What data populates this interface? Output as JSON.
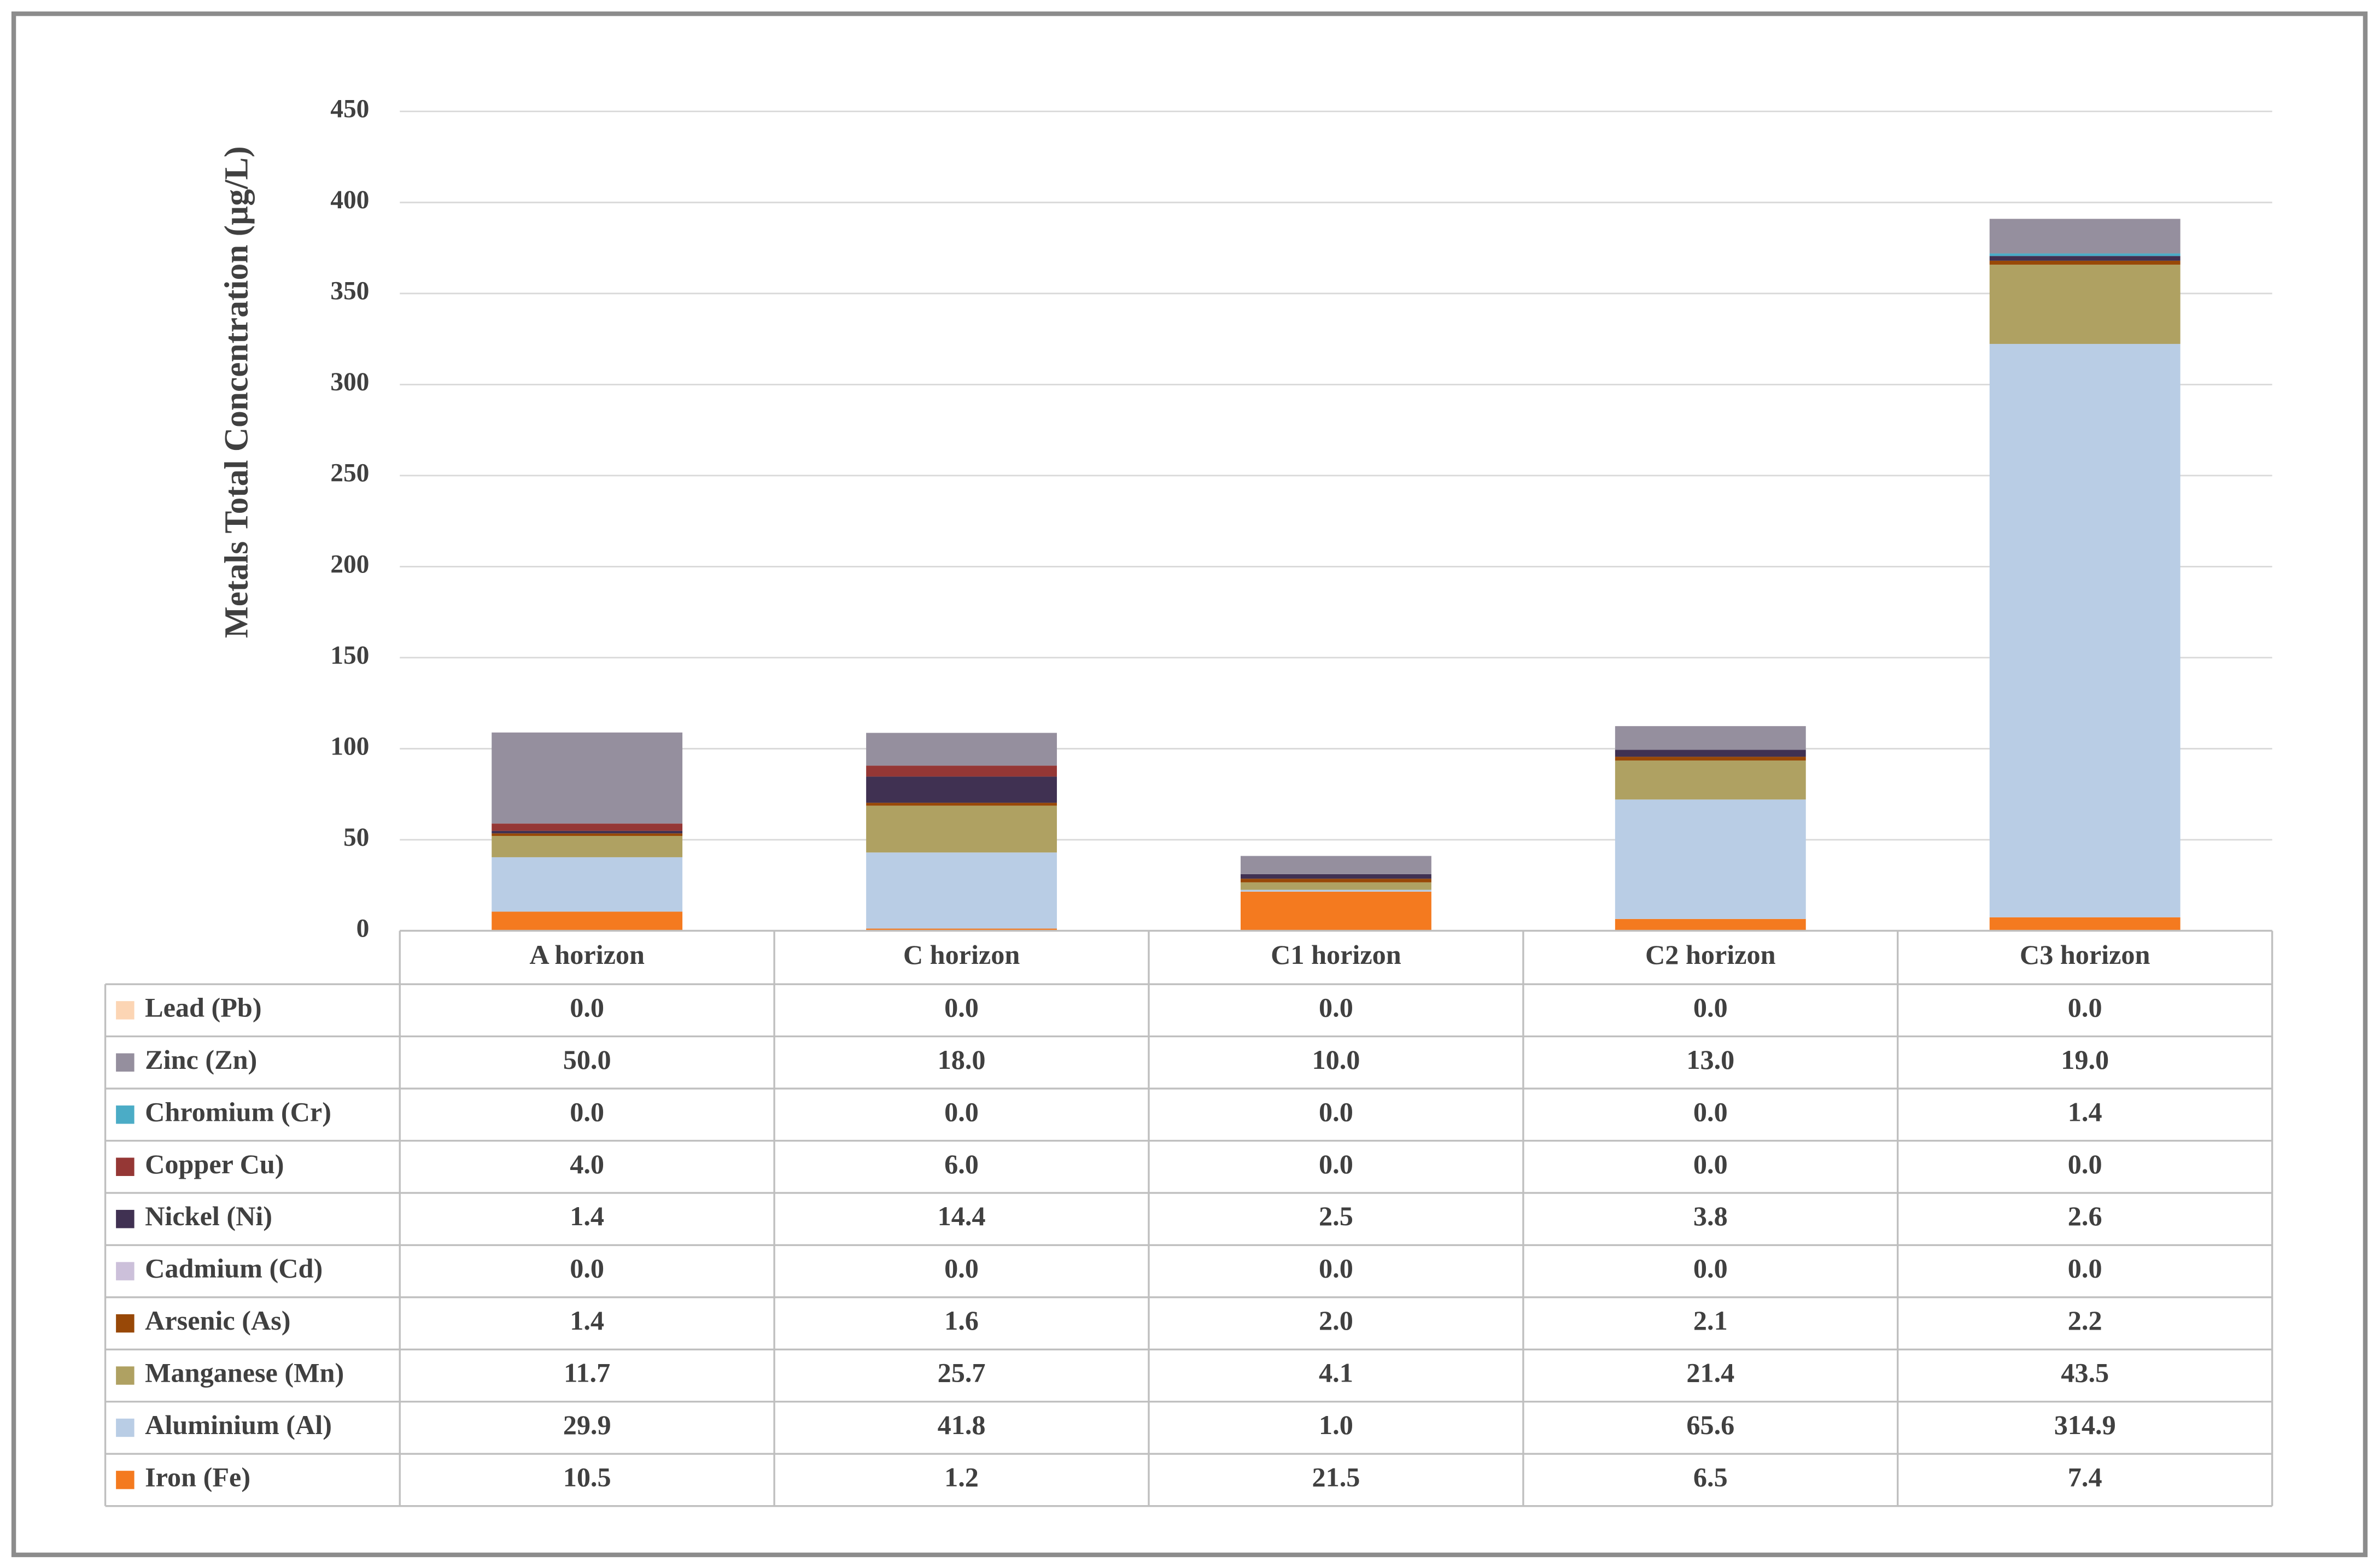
{
  "chart_data": {
    "type": "stacked-bar",
    "y_label": "Metals Total Concentration (µg/L)",
    "categories": [
      "A horizon",
      "C horizon",
      "C1 horizon",
      "C2 horizon",
      "C3 horizon"
    ],
    "ylim": [
      0,
      450
    ],
    "yticks": [
      0,
      50,
      100,
      150,
      200,
      250,
      300,
      350,
      400,
      450
    ],
    "grid": true,
    "series": [
      {
        "name": "Lead (Pb)",
        "color": "#fcd5b4",
        "values": [
          0,
          0,
          0,
          0,
          0
        ],
        "value_labels": [
          "0.0",
          "0.0",
          "0.0",
          "0.0",
          "0.0"
        ]
      },
      {
        "name": "Zinc (Zn)",
        "color": "#958f9e",
        "values": [
          50,
          18,
          10,
          13,
          19
        ],
        "value_labels": [
          "50.0",
          "18.0",
          "10.0",
          "13.0",
          "19.0"
        ]
      },
      {
        "name": "Chromium (Cr)",
        "color": "#4bacc6",
        "values": [
          0,
          0,
          0,
          0,
          1.4
        ],
        "value_labels": [
          "0.0",
          "0.0",
          "0.0",
          "0.0",
          "1.4"
        ]
      },
      {
        "name": "Copper Cu)",
        "color": "#953735",
        "values": [
          4,
          6,
          0,
          0,
          0
        ],
        "value_labels": [
          "4.0",
          "6.0",
          "0.0",
          "0.0",
          "0.0"
        ]
      },
      {
        "name": "Nickel (Ni)",
        "color": "#403152",
        "values": [
          1.4,
          14.4,
          2.5,
          3.8,
          2.6
        ],
        "value_labels": [
          "1.4",
          "14.4",
          "2.5",
          "3.8",
          "2.6"
        ]
      },
      {
        "name": "Cadmium (Cd)",
        "color": "#ccc0da",
        "values": [
          0,
          0,
          0,
          0,
          0
        ],
        "value_labels": [
          "0.0",
          "0.0",
          "0.0",
          "0.0",
          "0.0"
        ]
      },
      {
        "name": "Arsenic (As)",
        "color": "#984807",
        "values": [
          1.4,
          1.6,
          2,
          2.1,
          2.2
        ],
        "value_labels": [
          "1.4",
          "1.6",
          "2.0",
          "2.1",
          "2.2"
        ]
      },
      {
        "name": "Manganese (Mn)",
        "color": "#afa162",
        "values": [
          11.7,
          25.7,
          4.1,
          21.4,
          43.5
        ],
        "value_labels": [
          "11.7",
          "25.7",
          "4.1",
          "21.4",
          "43.5"
        ]
      },
      {
        "name": "Aluminium (Al)",
        "color": "#b9cde5",
        "values": [
          29.9,
          41.8,
          1,
          65.6,
          314.9
        ],
        "value_labels": [
          "29.9",
          "41.8",
          "1.0",
          "65.6",
          "314.9"
        ]
      },
      {
        "name": "Iron (Fe)",
        "color": "#f47a1f",
        "values": [
          10.5,
          1.2,
          21.5,
          6.5,
          7.4
        ],
        "value_labels": [
          "10.5",
          "1.2",
          "21.5",
          "6.5",
          "7.4"
        ]
      }
    ]
  }
}
